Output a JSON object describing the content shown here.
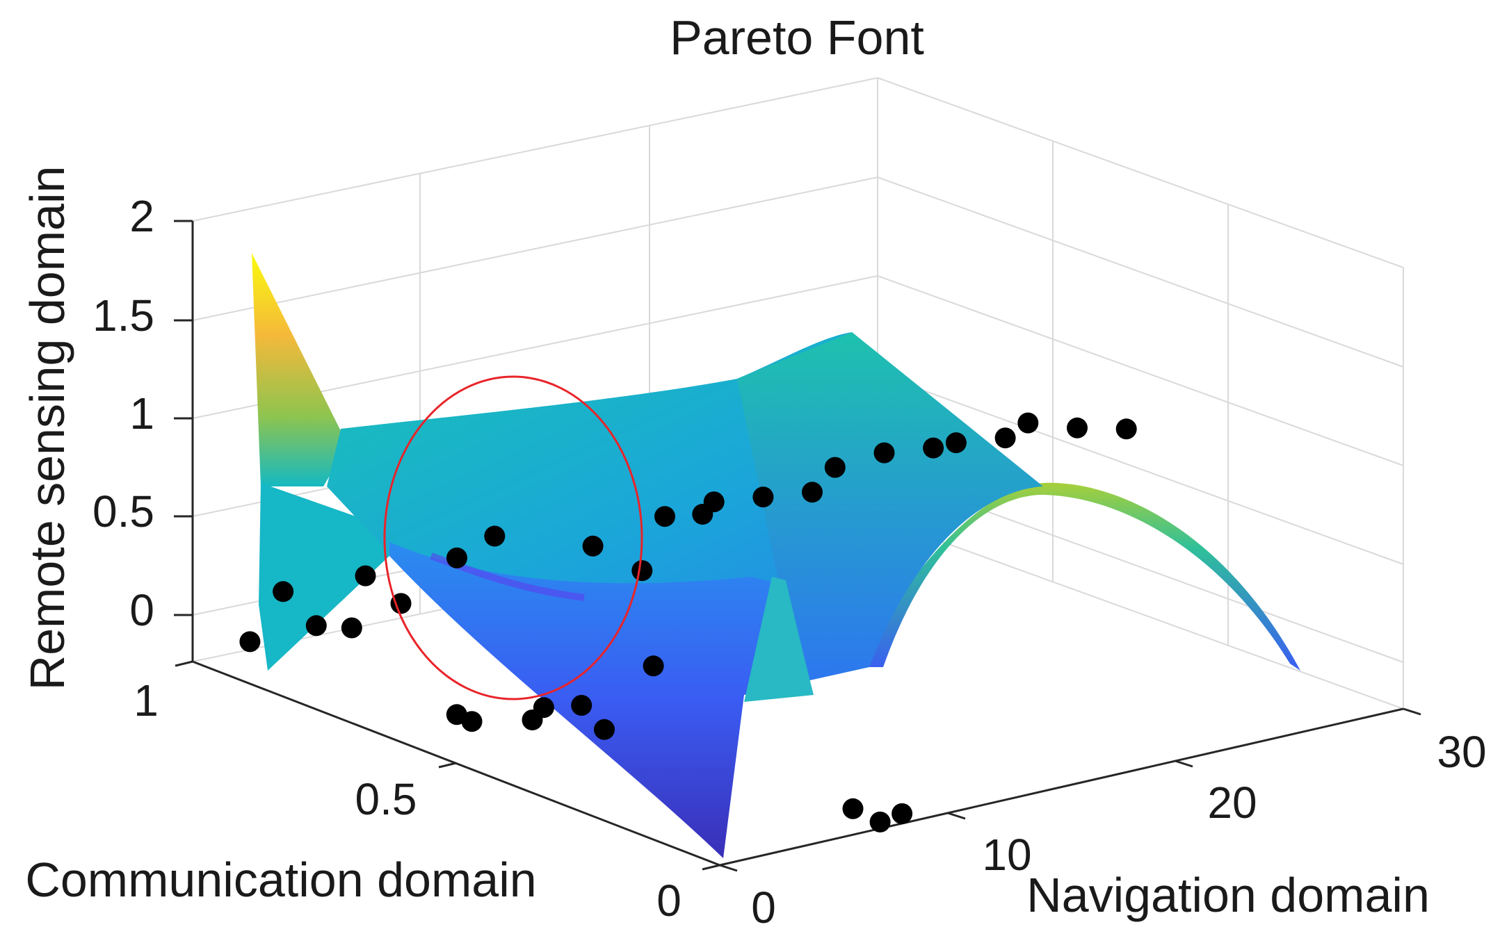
{
  "chart_data": {
    "type": "surface",
    "title": "Pareto Font",
    "xlabel": "Navigation domain",
    "ylabel": "Communication domain",
    "zlabel": "Remote sensing domain",
    "xlim": [
      0,
      30
    ],
    "ylim": [
      0,
      1
    ],
    "zlim": [
      -0.25,
      2
    ],
    "xticks": [
      "0",
      "10",
      "20",
      "30"
    ],
    "yticks": [
      "0",
      "0.5",
      "1"
    ],
    "zticks": [
      "0",
      "0.5",
      "1",
      "1.5",
      "2"
    ],
    "grid": true,
    "colormap": "parula",
    "marker_color": "#000000",
    "highlight_color": "#e8242a",
    "highlight": "red ellipse around the cluster of points near Navigation 0–8, Communication 0.6–1",
    "pareto_points": [
      {
        "x": 0.2,
        "y": 0.9,
        "z": -0.05
      },
      {
        "x": 0.5,
        "y": 0.85,
        "z": 0.25
      },
      {
        "x": 0.8,
        "y": 0.8,
        "z": 0.12
      },
      {
        "x": 1.2,
        "y": 0.75,
        "z": 0.15
      },
      {
        "x": 1.8,
        "y": 0.75,
        "z": 0.4
      },
      {
        "x": 2.2,
        "y": 0.7,
        "z": 0.3
      },
      {
        "x": 2.8,
        "y": 0.62,
        "z": -0.2
      },
      {
        "x": 3.0,
        "y": 0.6,
        "z": -0.22
      },
      {
        "x": 3.5,
        "y": 0.65,
        "z": 0.55
      },
      {
        "x": 4.0,
        "y": 0.6,
        "z": 0.7
      },
      {
        "x": 4.5,
        "y": 0.55,
        "z": -0.2
      },
      {
        "x": 5.0,
        "y": 0.55,
        "z": -0.15
      },
      {
        "x": 5.5,
        "y": 0.5,
        "z": -0.1
      },
      {
        "x": 6.0,
        "y": 0.5,
        "z": 0.7
      },
      {
        "x": 6.5,
        "y": 0.5,
        "z": -0.25
      },
      {
        "x": 7.0,
        "y": 0.45,
        "z": 0.6
      },
      {
        "x": 7.5,
        "y": 0.45,
        "z": 0.1
      },
      {
        "x": 8.0,
        "y": 0.45,
        "z": 0.85
      },
      {
        "x": 8.5,
        "y": 0.4,
        "z": 0.9
      },
      {
        "x": 9.0,
        "y": 0.4,
        "z": 0.95
      },
      {
        "x": 10.0,
        "y": 0.35,
        "z": 1.0
      },
      {
        "x": 11.0,
        "y": 0.3,
        "z": 1.05
      },
      {
        "x": 12.0,
        "y": 0.3,
        "z": 1.15
      },
      {
        "x": 13.0,
        "y": 0.25,
        "z": 1.25
      },
      {
        "x": 14.0,
        "y": 0.2,
        "z": 1.3
      },
      {
        "x": 15.0,
        "y": 0.2,
        "z": 1.3
      },
      {
        "x": 16.0,
        "y": 0.15,
        "z": 1.35
      },
      {
        "x": 17.0,
        "y": 0.15,
        "z": 1.4
      },
      {
        "x": 18.0,
        "y": 0.1,
        "z": 1.4
      },
      {
        "x": 19.0,
        "y": 0.05,
        "z": 1.42
      },
      {
        "x": 7.0,
        "y": 0.05,
        "z": -0.2
      },
      {
        "x": 7.5,
        "y": 0.02,
        "z": -0.25
      },
      {
        "x": 8.0,
        "y": 0.0,
        "z": -0.2
      }
    ]
  }
}
